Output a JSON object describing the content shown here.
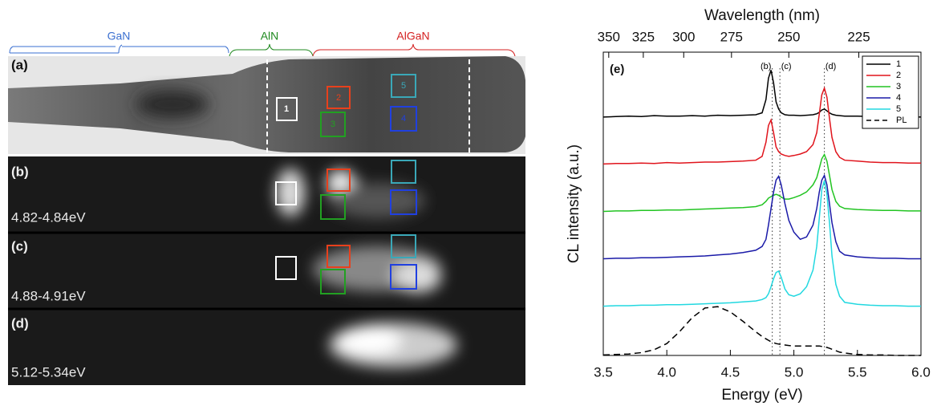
{
  "image_panel": {
    "regions": [
      "GaN",
      "AlN",
      "AlGaN"
    ],
    "panels": [
      {
        "label": "(a)"
      },
      {
        "label": "(b)",
        "range": "4.82-4.84eV"
      },
      {
        "label": "(c)",
        "range": "4.88-4.91eV"
      },
      {
        "label": "(d)",
        "range": "5.12-5.34eV"
      }
    ],
    "box_labels": [
      "1",
      "2",
      "3",
      "4",
      "5"
    ]
  },
  "chart_data": {
    "type": "line",
    "xlabel": "Energy (eV)",
    "ylabel": "CL intensity (a.u.)",
    "x2label": "Wavelength (nm)",
    "xlim": [
      3.5,
      6.0
    ],
    "xticks": [
      3.5,
      {
        "value": 4,
        "label": "4.0"
      },
      4.5,
      {
        "value": 5,
        "label": "5.0"
      },
      5.5,
      {
        "value": 6,
        "label": "6.0"
      }
    ],
    "x2ticks": [
      {
        "value": 3.543,
        "label": "350"
      },
      {
        "value": 3.815,
        "label": "325"
      },
      {
        "value": 4.133,
        "label": "300"
      },
      {
        "value": 4.509,
        "label": "275"
      },
      {
        "value": 4.96,
        "label": "250"
      },
      {
        "value": 5.511,
        "label": "225"
      }
    ],
    "ylim": [
      0,
      6.4
    ],
    "panel_label": "(e)",
    "markers": [
      {
        "label": "(b)",
        "value": 4.83
      },
      {
        "label": "(c)",
        "value": 4.89
      },
      {
        "label": "(d)",
        "value": 5.24
      }
    ],
    "x": [
      3.5,
      3.6,
      3.7,
      3.8,
      3.9,
      4.0,
      4.1,
      4.2,
      4.3,
      4.4,
      4.5,
      4.6,
      4.7,
      4.75,
      4.78,
      4.8,
      4.82,
      4.84,
      4.86,
      4.88,
      4.9,
      4.93,
      4.96,
      5.0,
      5.05,
      5.1,
      5.15,
      5.18,
      5.2,
      5.22,
      5.24,
      5.26,
      5.28,
      5.3,
      5.33,
      5.36,
      5.4,
      5.5,
      5.6,
      5.7,
      5.8,
      5.9,
      6.0
    ],
    "series": [
      {
        "name": "1",
        "color": "#000000",
        "values": [
          5.03,
          5.04,
          5.05,
          5.04,
          5.06,
          5.05,
          5.05,
          5.06,
          5.05,
          5.07,
          5.06,
          5.07,
          5.08,
          5.12,
          5.4,
          5.85,
          6.02,
          5.75,
          5.35,
          5.2,
          5.12,
          5.08,
          5.07,
          5.07,
          5.06,
          5.07,
          5.08,
          5.1,
          5.13,
          5.18,
          5.2,
          5.16,
          5.12,
          5.09,
          5.07,
          5.06,
          5.05,
          5.05,
          5.04,
          5.05,
          5.04,
          5.04,
          5.03
        ]
      },
      {
        "name": "2",
        "color": "#e0141c",
        "values": [
          4.04,
          4.05,
          4.05,
          4.06,
          4.05,
          4.07,
          4.06,
          4.07,
          4.08,
          4.08,
          4.09,
          4.1,
          4.12,
          4.2,
          4.5,
          4.85,
          4.97,
          4.7,
          4.4,
          4.3,
          4.25,
          4.22,
          4.2,
          4.22,
          4.25,
          4.3,
          4.45,
          4.7,
          5.1,
          5.5,
          5.64,
          5.45,
          5.0,
          4.6,
          4.3,
          4.18,
          4.12,
          4.1,
          4.08,
          4.07,
          4.07,
          4.06,
          4.06
        ]
      },
      {
        "name": "3",
        "color": "#22c422",
        "values": [
          3.04,
          3.05,
          3.05,
          3.06,
          3.06,
          3.07,
          3.07,
          3.08,
          3.09,
          3.1,
          3.11,
          3.12,
          3.14,
          3.18,
          3.25,
          3.32,
          3.35,
          3.38,
          3.4,
          3.38,
          3.34,
          3.3,
          3.3,
          3.33,
          3.38,
          3.45,
          3.6,
          3.75,
          3.95,
          4.15,
          4.24,
          4.1,
          3.8,
          3.5,
          3.25,
          3.15,
          3.1,
          3.08,
          3.07,
          3.06,
          3.06,
          3.05,
          3.05
        ]
      },
      {
        "name": "4",
        "color": "#1a1aa8",
        "values": [
          2.04,
          2.05,
          2.05,
          2.06,
          2.06,
          2.07,
          2.08,
          2.09,
          2.1,
          2.12,
          2.14,
          2.17,
          2.22,
          2.3,
          2.45,
          2.75,
          3.1,
          3.45,
          3.7,
          3.78,
          3.6,
          3.2,
          2.85,
          2.6,
          2.45,
          2.5,
          2.75,
          3.1,
          3.45,
          3.7,
          3.8,
          3.6,
          3.2,
          2.8,
          2.4,
          2.2,
          2.12,
          2.08,
          2.06,
          2.05,
          2.05,
          2.04,
          2.04
        ]
      },
      {
        "name": "5",
        "color": "#22d8e0",
        "values": [
          1.04,
          1.05,
          1.05,
          1.06,
          1.06,
          1.07,
          1.07,
          1.08,
          1.09,
          1.1,
          1.11,
          1.13,
          1.15,
          1.18,
          1.22,
          1.3,
          1.45,
          1.62,
          1.75,
          1.78,
          1.65,
          1.4,
          1.28,
          1.25,
          1.3,
          1.45,
          1.8,
          2.3,
          2.9,
          3.5,
          3.69,
          3.4,
          2.8,
          2.1,
          1.5,
          1.25,
          1.12,
          1.08,
          1.06,
          1.05,
          1.05,
          1.04,
          1.04
        ]
      },
      {
        "name": "PL",
        "color": "#000000",
        "dash": true,
        "values": [
          0.01,
          0.02,
          0.03,
          0.06,
          0.12,
          0.25,
          0.5,
          0.8,
          1.0,
          1.03,
          0.92,
          0.72,
          0.5,
          0.4,
          0.35,
          0.32,
          0.29,
          0.27,
          0.25,
          0.24,
          0.23,
          0.22,
          0.21,
          0.2,
          0.2,
          0.2,
          0.2,
          0.2,
          0.2,
          0.19,
          0.18,
          0.17,
          0.15,
          0.13,
          0.1,
          0.07,
          0.05,
          0.02,
          0.01,
          0.01,
          0,
          0,
          0
        ]
      }
    ]
  }
}
